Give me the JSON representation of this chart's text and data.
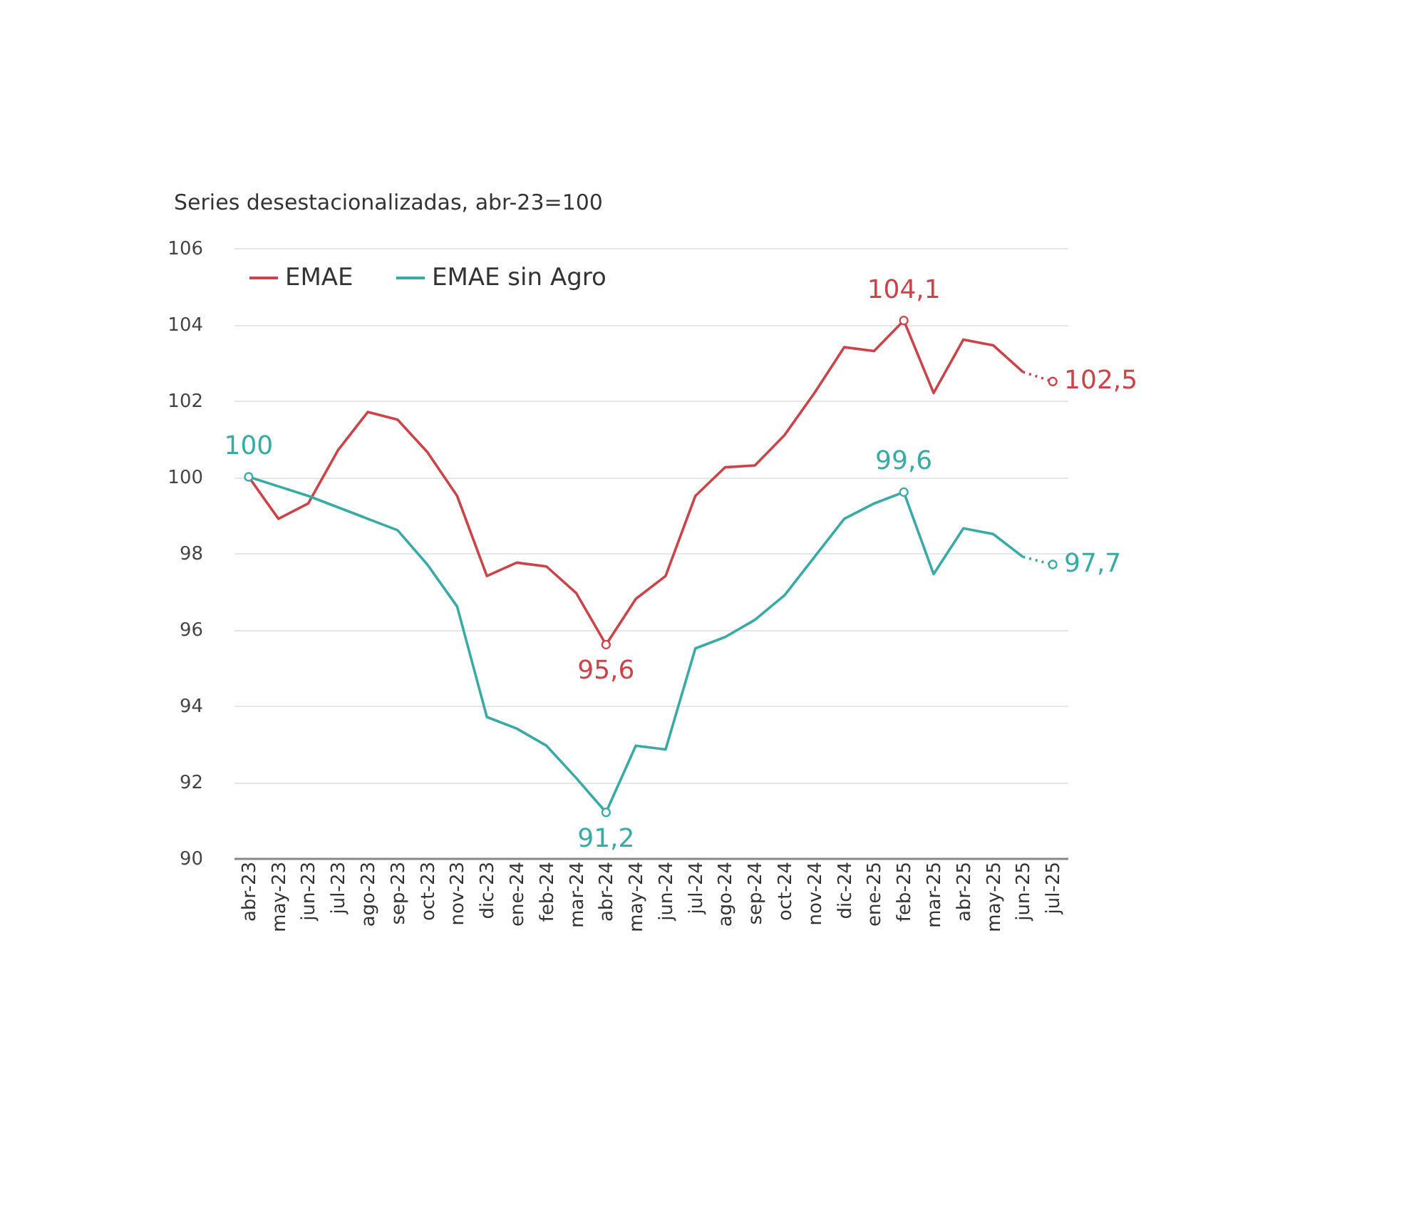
{
  "chart_data": {
    "type": "line",
    "title": "Series desestacionalizadas, abr-23=100",
    "categories": [
      "abr-23",
      "may-23",
      "jun-23",
      "jul-23",
      "ago-23",
      "sep-23",
      "oct-23",
      "nov-23",
      "dic-23",
      "ene-24",
      "feb-24",
      "mar-24",
      "abr-24",
      "may-24",
      "jun-24",
      "jul-24",
      "ago-24",
      "sep-24",
      "oct-24",
      "nov-24",
      "dic-24",
      "ene-25",
      "feb-25",
      "mar-25",
      "abr-25",
      "may-25",
      "jun-25",
      "jul-25"
    ],
    "series": [
      {
        "name": "EMAE",
        "color": "#c9454a",
        "line_style": "solid",
        "values": [
          100,
          98.9,
          99.3,
          100.7,
          101.7,
          101.5,
          100.65,
          99.5,
          97.4,
          97.75,
          97.65,
          96.95,
          95.6,
          96.8,
          97.4,
          99.5,
          100.25,
          100.3,
          101.1,
          102.2,
          103.4,
          103.3,
          104.1,
          102.2,
          103.6,
          103.45,
          102.75,
          null
        ],
        "value_labels": [
          null,
          null,
          null,
          null,
          null,
          null,
          null,
          null,
          null,
          null,
          null,
          null,
          "95,6",
          null,
          null,
          null,
          null,
          null,
          null,
          null,
          null,
          null,
          "104,1",
          null,
          null,
          null,
          null,
          null
        ]
      },
      {
        "name": "EMAE sin Agro",
        "color": "#3aaaa5",
        "line_style": "solid",
        "values": [
          100,
          99.75,
          99.5,
          99.2,
          98.9,
          98.6,
          97.7,
          96.6,
          93.7,
          93.4,
          92.95,
          92.1,
          91.2,
          92.95,
          92.85,
          95.5,
          95.8,
          96.25,
          96.9,
          97.9,
          98.9,
          99.3,
          99.6,
          97.45,
          98.65,
          98.5,
          97.9,
          null
        ],
        "value_labels": [
          "100",
          null,
          null,
          null,
          null,
          null,
          null,
          null,
          null,
          null,
          null,
          null,
          "91,2",
          null,
          null,
          null,
          null,
          null,
          null,
          null,
          null,
          null,
          "99,6",
          null,
          null,
          null,
          null,
          null
        ]
      },
      {
        "color": "#c9454a",
        "line_style": "dotted",
        "values": [
          null,
          null,
          null,
          null,
          null,
          null,
          null,
          null,
          null,
          null,
          null,
          null,
          null,
          null,
          null,
          null,
          null,
          null,
          null,
          null,
          null,
          null,
          null,
          null,
          null,
          null,
          102.75,
          102.5
        ],
        "value_labels": [
          null,
          null,
          null,
          null,
          null,
          null,
          null,
          null,
          null,
          null,
          null,
          null,
          null,
          null,
          null,
          null,
          null,
          null,
          null,
          null,
          null,
          null,
          null,
          null,
          null,
          null,
          null,
          "102,5"
        ]
      },
      {
        "color": "#3aaaa5",
        "line_style": "dotted",
        "values": [
          null,
          null,
          null,
          null,
          null,
          null,
          null,
          null,
          null,
          null,
          null,
          null,
          null,
          null,
          null,
          null,
          null,
          null,
          null,
          null,
          null,
          null,
          null,
          null,
          null,
          null,
          97.9,
          97.7
        ],
        "value_labels": [
          null,
          null,
          null,
          null,
          null,
          null,
          null,
          null,
          null,
          null,
          null,
          null,
          null,
          null,
          null,
          null,
          null,
          null,
          null,
          null,
          null,
          null,
          null,
          null,
          null,
          null,
          null,
          "97,7"
        ]
      }
    ],
    "ylim": [
      90,
      106
    ],
    "yticks": [
      90,
      92,
      94,
      96,
      98,
      100,
      102,
      104,
      106
    ],
    "grid": "y",
    "legend": "top left"
  }
}
